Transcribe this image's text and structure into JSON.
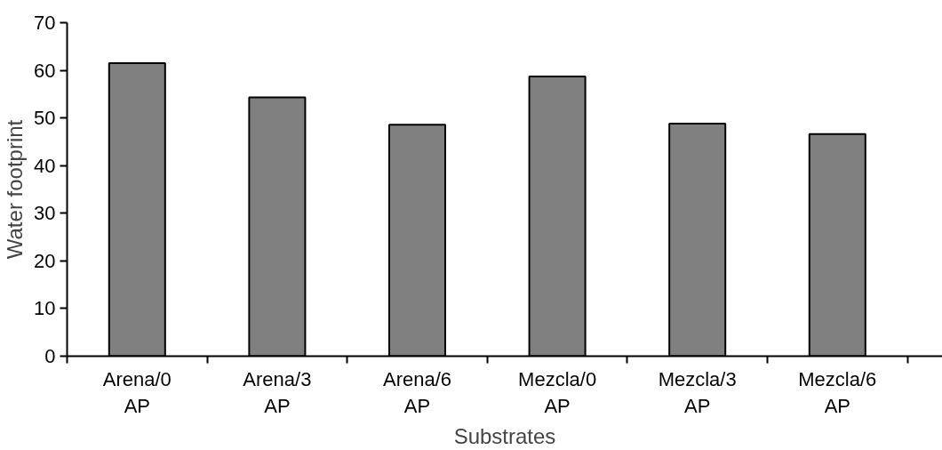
{
  "chart_data": {
    "type": "bar",
    "xlabel": "Substrates",
    "ylabel": "Water footprint",
    "categories": [
      "Arena/0 AP",
      "Arena/3 AP",
      "Arena/6 AP",
      "Mezcla/0 AP",
      "Mezcla/3 AP",
      "Mezcla/6 AP"
    ],
    "values": [
      61.5,
      54.3,
      48.6,
      58.7,
      48.8,
      46.6
    ],
    "color": "#808080",
    "ylim": [
      0,
      70
    ],
    "yticks": [
      0,
      10,
      20,
      30,
      40,
      50,
      60,
      70
    ],
    "grid": false
  }
}
